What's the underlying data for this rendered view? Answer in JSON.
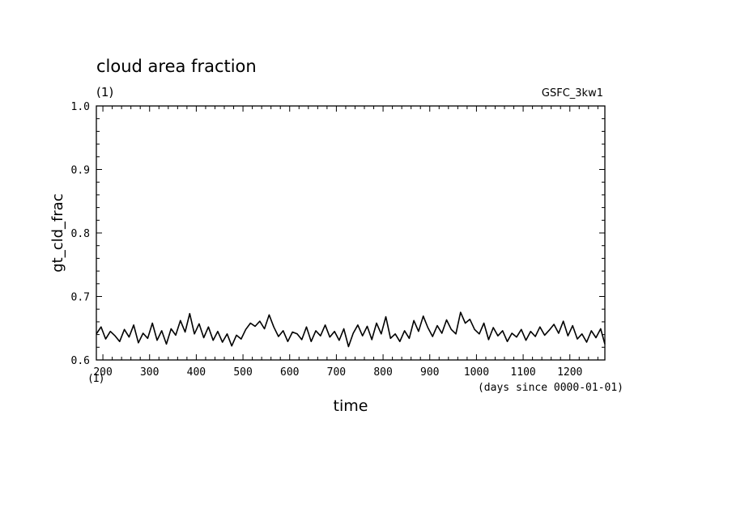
{
  "chart_data": {
    "type": "line",
    "title": "cloud area fraction",
    "subtitle": "(1)",
    "run_label": "GSFC_3kw1",
    "xlabel": "time",
    "x_unit": "(days since 0000-01-01)",
    "ylabel": "gt_cld_frac",
    "y_unit": "(1)",
    "xlim": [
      186,
      1275
    ],
    "ylim": [
      0.6,
      1.0
    ],
    "x_ticks": [
      200,
      300,
      400,
      500,
      600,
      700,
      800,
      900,
      1000,
      1100,
      1200
    ],
    "y_ticks": [
      0.6,
      0.7,
      0.8,
      0.9,
      1.0
    ],
    "y_tick_labels": [
      "0.6",
      "0.7",
      "0.8",
      "0.9",
      "1.0"
    ],
    "grid": false,
    "series": [
      {
        "color": "#000000",
        "x": [
          186,
          196,
          206,
          216,
          226,
          236,
          246,
          256,
          266,
          276,
          286,
          296,
          306,
          316,
          326,
          336,
          346,
          356,
          366,
          376,
          386,
          396,
          406,
          416,
          426,
          436,
          446,
          456,
          466,
          476,
          486,
          496,
          506,
          516,
          526,
          536,
          546,
          556,
          566,
          576,
          586,
          596,
          606,
          616,
          626,
          636,
          646,
          656,
          666,
          676,
          686,
          696,
          706,
          716,
          726,
          736,
          746,
          756,
          766,
          776,
          786,
          796,
          806,
          816,
          826,
          836,
          846,
          856,
          866,
          876,
          886,
          896,
          906,
          916,
          926,
          936,
          946,
          956,
          966,
          976,
          986,
          996,
          1006,
          1016,
          1026,
          1036,
          1046,
          1056,
          1066,
          1076,
          1086,
          1096,
          1106,
          1116,
          1126,
          1136,
          1146,
          1156,
          1166,
          1176,
          1186,
          1196,
          1206,
          1216,
          1226,
          1236,
          1246,
          1256,
          1266,
          1275
        ],
        "y": [
          0.641,
          0.652,
          0.633,
          0.645,
          0.638,
          0.629,
          0.648,
          0.636,
          0.655,
          0.627,
          0.642,
          0.634,
          0.658,
          0.631,
          0.646,
          0.625,
          0.649,
          0.639,
          0.662,
          0.644,
          0.673,
          0.641,
          0.657,
          0.635,
          0.652,
          0.631,
          0.645,
          0.628,
          0.641,
          0.622,
          0.639,
          0.633,
          0.648,
          0.658,
          0.653,
          0.661,
          0.649,
          0.671,
          0.652,
          0.637,
          0.646,
          0.629,
          0.644,
          0.641,
          0.632,
          0.652,
          0.629,
          0.646,
          0.638,
          0.655,
          0.636,
          0.645,
          0.631,
          0.649,
          0.621,
          0.642,
          0.655,
          0.638,
          0.653,
          0.632,
          0.658,
          0.641,
          0.668,
          0.634,
          0.641,
          0.629,
          0.646,
          0.634,
          0.662,
          0.645,
          0.669,
          0.651,
          0.637,
          0.654,
          0.642,
          0.663,
          0.648,
          0.641,
          0.675,
          0.658,
          0.664,
          0.648,
          0.641,
          0.658,
          0.632,
          0.651,
          0.638,
          0.646,
          0.629,
          0.642,
          0.636,
          0.648,
          0.631,
          0.645,
          0.637,
          0.652,
          0.639,
          0.647,
          0.656,
          0.642,
          0.661,
          0.638,
          0.654,
          0.633,
          0.641,
          0.628,
          0.646,
          0.635,
          0.649,
          0.625
        ]
      }
    ]
  }
}
